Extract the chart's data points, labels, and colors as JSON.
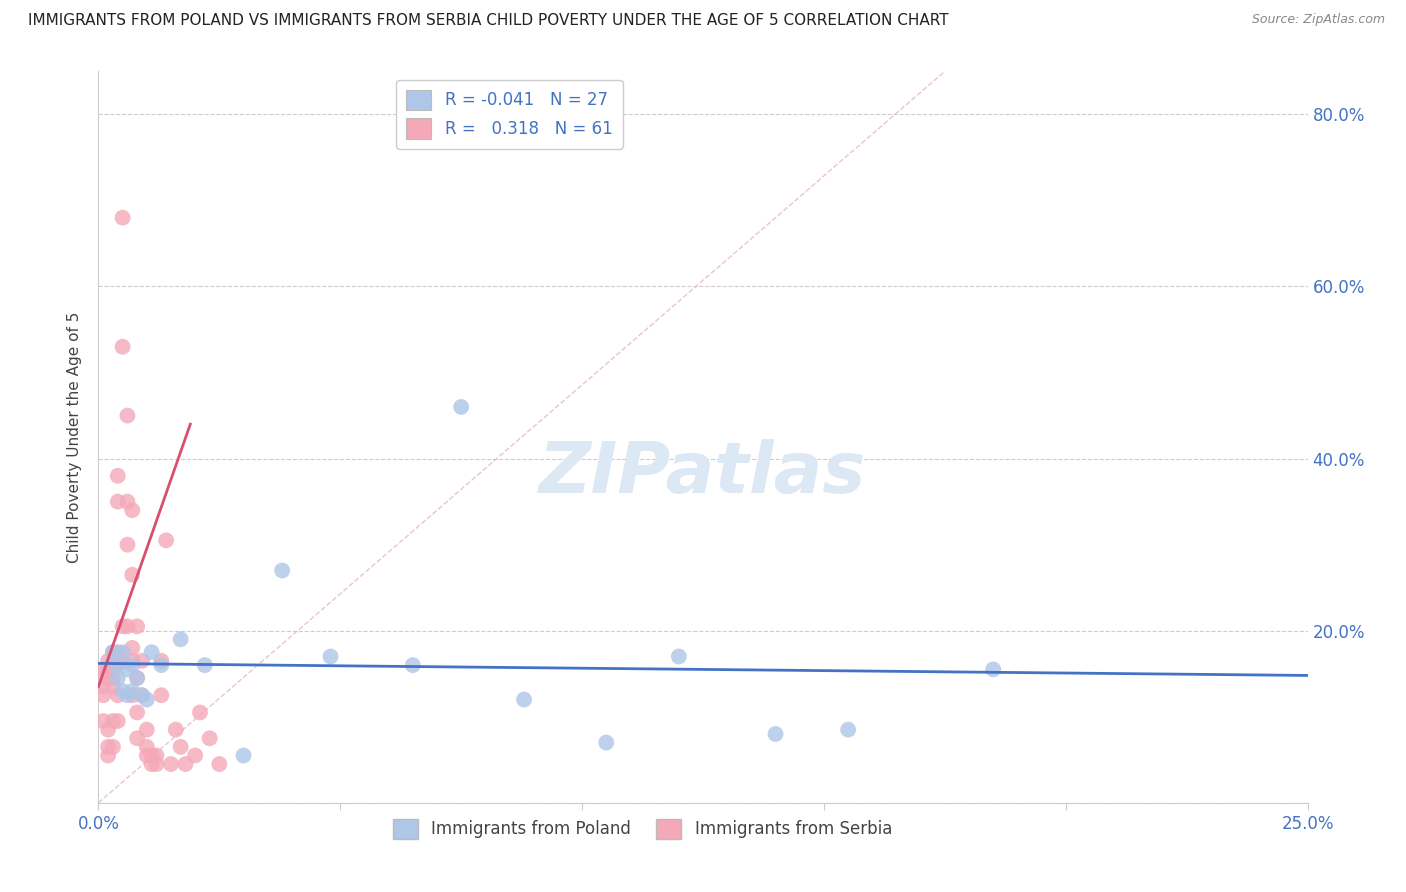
{
  "title": "IMMIGRANTS FROM POLAND VS IMMIGRANTS FROM SERBIA CHILD POVERTY UNDER THE AGE OF 5 CORRELATION CHART",
  "source": "Source: ZipAtlas.com",
  "ylabel": "Child Poverty Under the Age of 5",
  "xlim": [
    0,
    0.25
  ],
  "ylim": [
    0,
    0.85
  ],
  "legend_r_poland": "-0.041",
  "legend_n_poland": "27",
  "legend_r_serbia": "0.318",
  "legend_n_serbia": "61",
  "poland_color": "#aec6e8",
  "serbia_color": "#f4a8b8",
  "poland_line_color": "#4472c4",
  "serbia_line_color": "#d94f6e",
  "diag_line_color": "#e8b4c0",
  "poland_scatter_x": [
    0.003,
    0.004,
    0.004,
    0.005,
    0.005,
    0.006,
    0.006,
    0.007,
    0.007,
    0.008,
    0.009,
    0.01,
    0.011,
    0.013,
    0.017,
    0.022,
    0.03,
    0.038,
    0.048,
    0.065,
    0.075,
    0.088,
    0.105,
    0.12,
    0.14,
    0.155,
    0.185
  ],
  "poland_scatter_y": [
    0.175,
    0.16,
    0.145,
    0.175,
    0.13,
    0.155,
    0.125,
    0.16,
    0.13,
    0.145,
    0.125,
    0.12,
    0.175,
    0.16,
    0.19,
    0.16,
    0.055,
    0.27,
    0.17,
    0.16,
    0.46,
    0.12,
    0.07,
    0.17,
    0.08,
    0.085,
    0.155
  ],
  "serbia_scatter_x": [
    0.001,
    0.001,
    0.001,
    0.001,
    0.001,
    0.002,
    0.002,
    0.002,
    0.002,
    0.002,
    0.002,
    0.003,
    0.003,
    0.003,
    0.003,
    0.003,
    0.003,
    0.003,
    0.004,
    0.004,
    0.004,
    0.004,
    0.004,
    0.004,
    0.005,
    0.005,
    0.005,
    0.005,
    0.006,
    0.006,
    0.006,
    0.006,
    0.007,
    0.007,
    0.007,
    0.007,
    0.007,
    0.008,
    0.008,
    0.008,
    0.008,
    0.009,
    0.009,
    0.01,
    0.01,
    0.01,
    0.011,
    0.011,
    0.012,
    0.012,
    0.013,
    0.013,
    0.014,
    0.015,
    0.016,
    0.017,
    0.018,
    0.02,
    0.021,
    0.023,
    0.025
  ],
  "serbia_scatter_y": [
    0.155,
    0.145,
    0.135,
    0.125,
    0.095,
    0.165,
    0.155,
    0.145,
    0.085,
    0.065,
    0.055,
    0.175,
    0.165,
    0.155,
    0.145,
    0.135,
    0.095,
    0.065,
    0.38,
    0.35,
    0.175,
    0.165,
    0.125,
    0.095,
    0.68,
    0.53,
    0.205,
    0.165,
    0.45,
    0.35,
    0.3,
    0.205,
    0.34,
    0.265,
    0.18,
    0.165,
    0.125,
    0.205,
    0.145,
    0.105,
    0.075,
    0.165,
    0.125,
    0.085,
    0.065,
    0.055,
    0.055,
    0.045,
    0.055,
    0.045,
    0.165,
    0.125,
    0.305,
    0.045,
    0.085,
    0.065,
    0.045,
    0.055,
    0.105,
    0.075,
    0.045
  ],
  "poland_trend_x": [
    0.0,
    0.25
  ],
  "poland_trend_y": [
    0.162,
    0.148
  ],
  "serbia_trend_x": [
    0.0,
    0.019
  ],
  "serbia_trend_y": [
    0.135,
    0.44
  ],
  "diag_trend_x": [
    0.0,
    0.175
  ],
  "diag_trend_y": [
    0.0,
    0.85
  ],
  "background_color": "#ffffff",
  "grid_color": "#cccccc",
  "tick_color": "#4472c4",
  "axis_color": "#cccccc",
  "watermark": "ZIPatlas",
  "watermark_color": "#dde8f5"
}
